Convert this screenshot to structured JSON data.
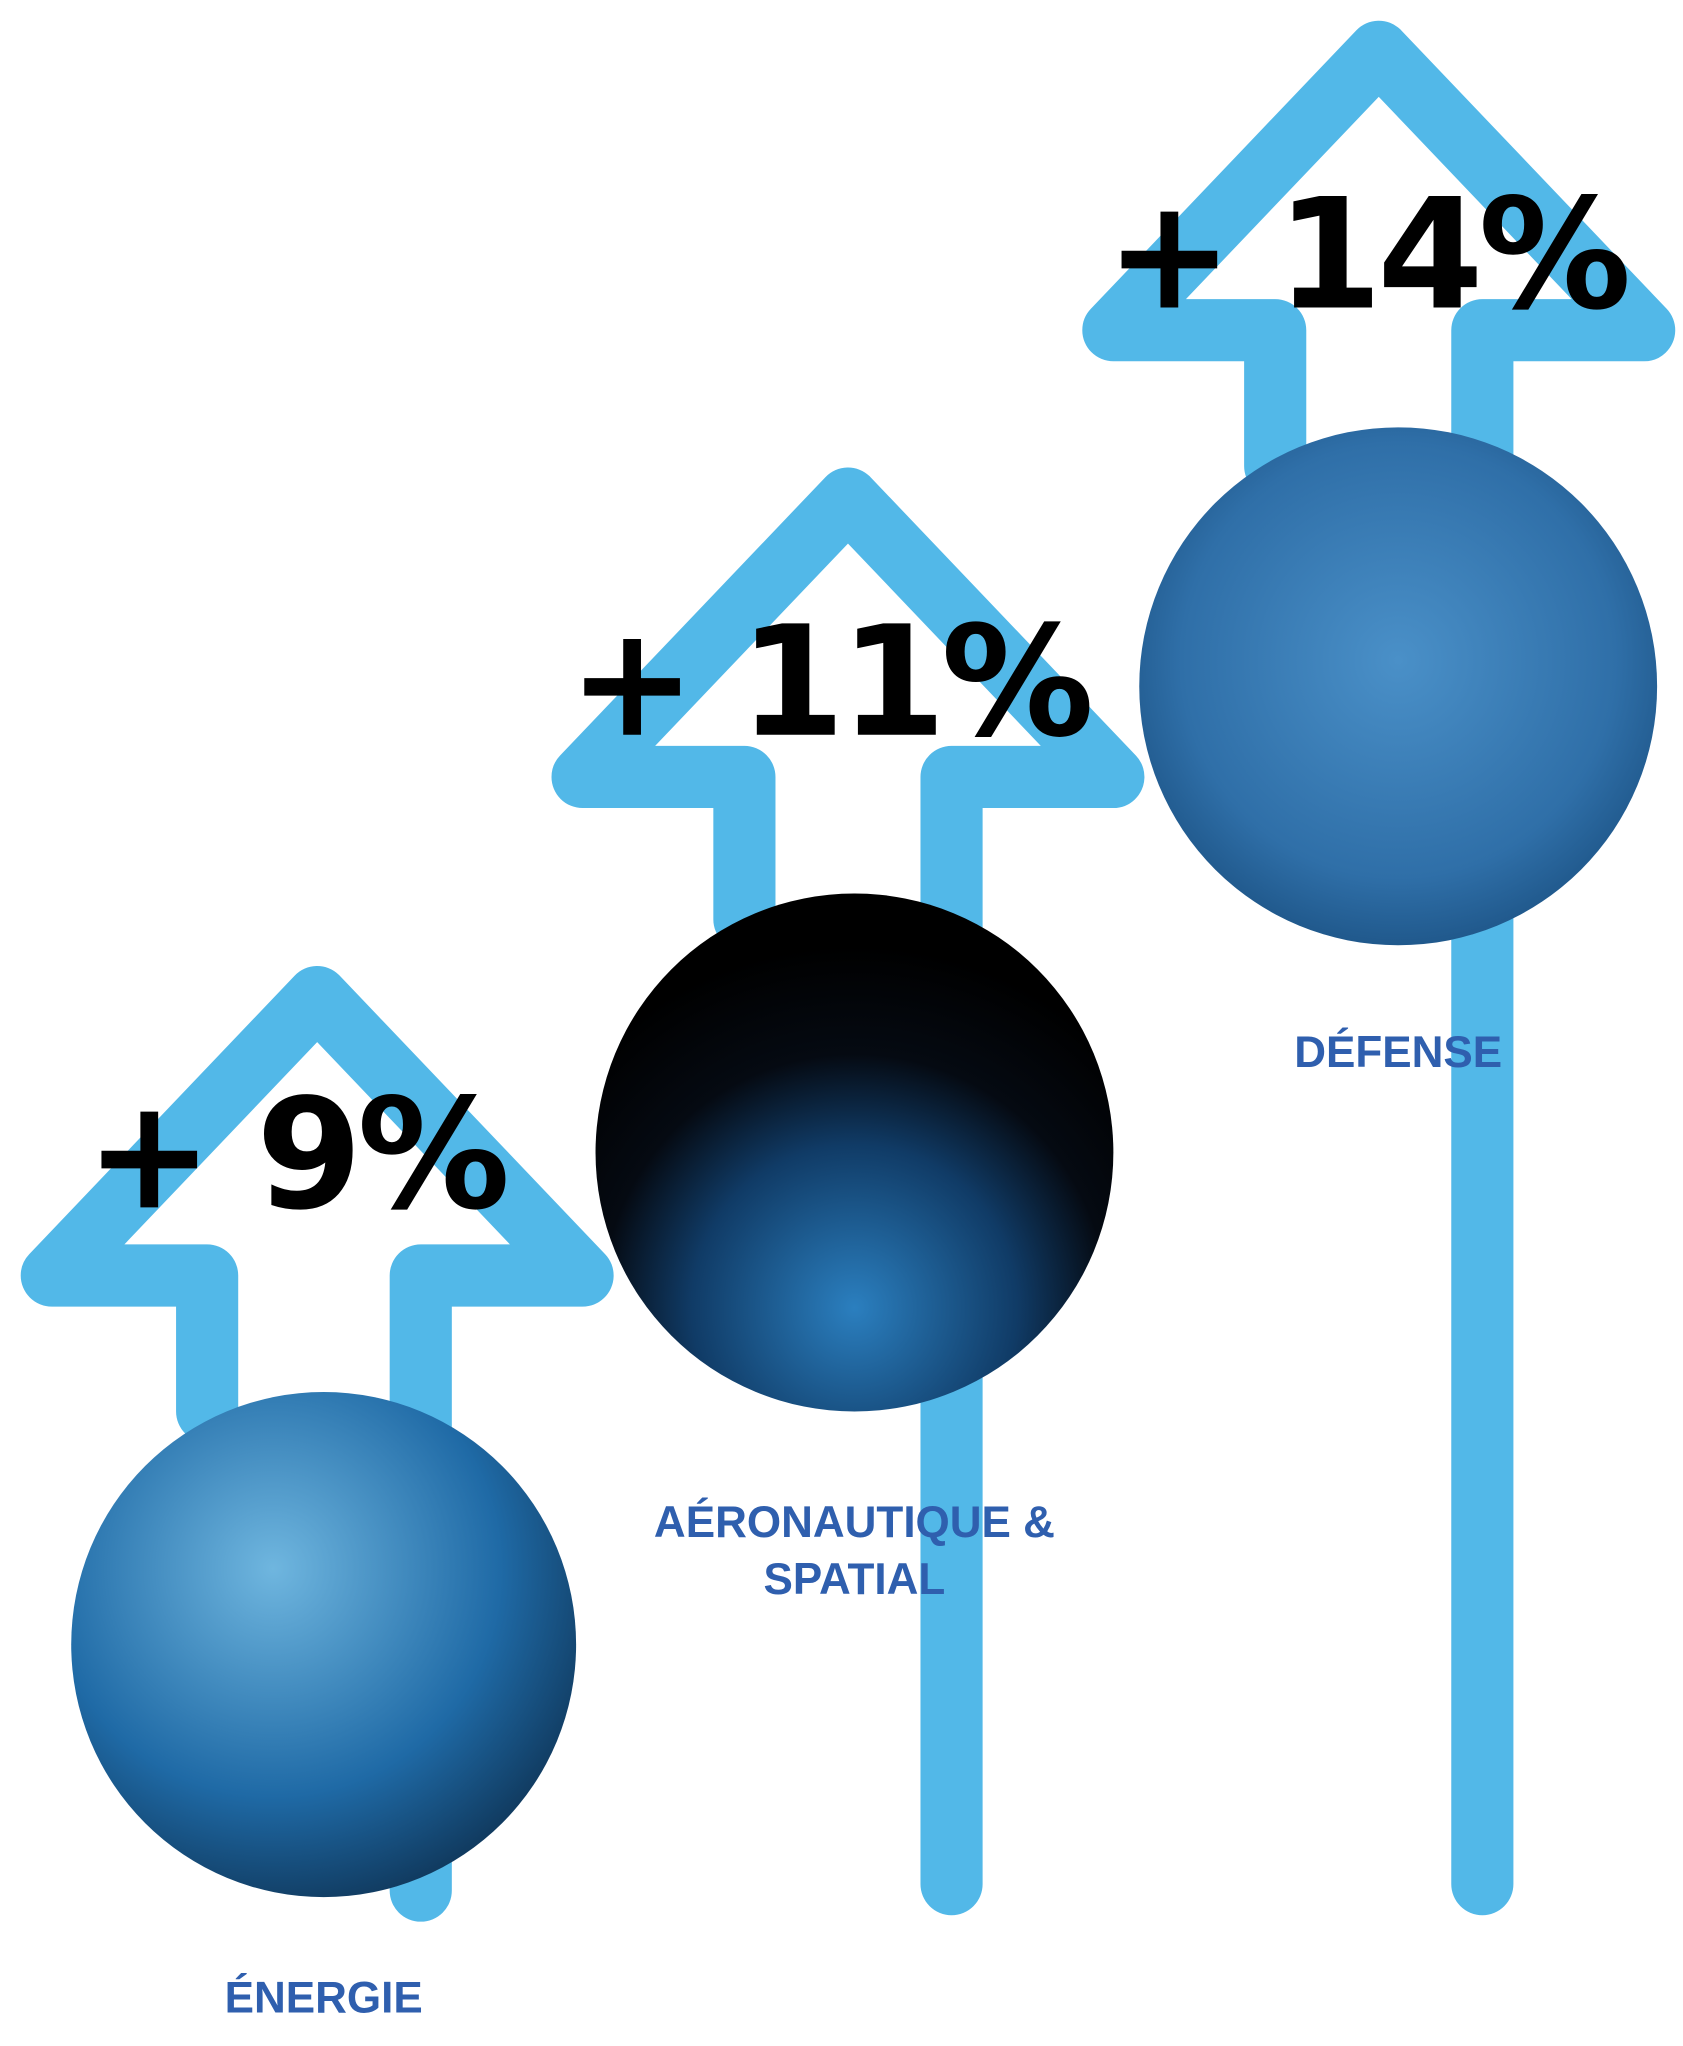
{
  "items": [
    {
      "percent": "+ 9%",
      "label": [
        "ÉNERGIE"
      ]
    },
    {
      "percent": "+ 11%",
      "label": [
        "AÉRONAUTIQUE &",
        "SPATIAL"
      ]
    },
    {
      "percent": "+ 14%",
      "label": [
        "DÉFENSE"
      ]
    }
  ]
}
